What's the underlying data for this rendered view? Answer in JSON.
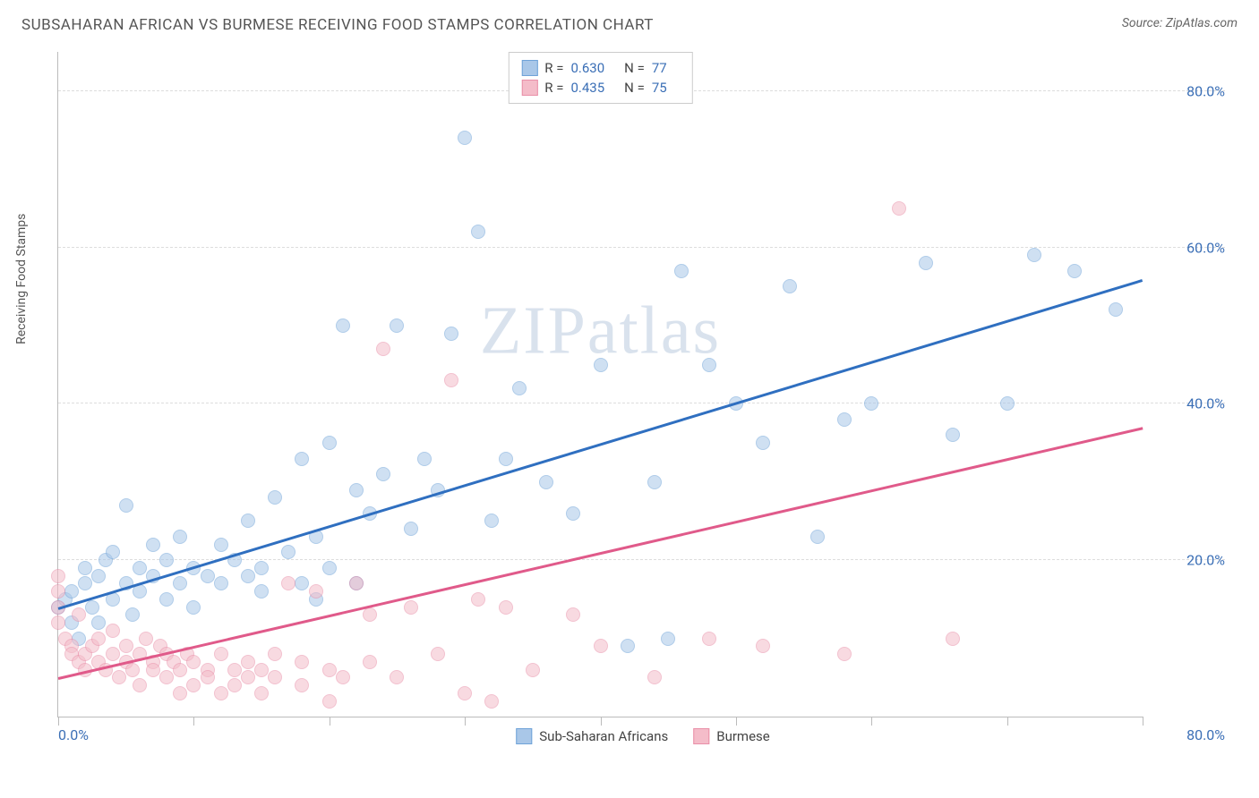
{
  "title": "SUBSAHARAN AFRICAN VS BURMESE RECEIVING FOOD STAMPS CORRELATION CHART",
  "source_label": "Source: ZipAtlas.com",
  "watermark": "ZIPatlas",
  "y_axis_label": "Receiving Food Stamps",
  "chart": {
    "type": "scatter",
    "xlim": [
      0,
      80
    ],
    "ylim": [
      0,
      85
    ],
    "x_tick_positions": [
      0,
      10,
      20,
      30,
      40,
      50,
      60,
      70,
      80
    ],
    "y_ticks": [
      20,
      40,
      60,
      80
    ],
    "y_tick_labels": [
      "20.0%",
      "40.0%",
      "60.0%",
      "80.0%"
    ],
    "x_min_label": "0.0%",
    "x_max_label": "80.0%",
    "background_color": "#ffffff",
    "grid_color": "#dddddd",
    "axis_color": "#bbbbbb",
    "tick_label_color": "#3b6fb6",
    "point_radius": 8,
    "point_opacity": 0.55,
    "series": [
      {
        "name": "Sub-Saharan Africans",
        "color_fill": "#a9c7e8",
        "color_stroke": "#6fa3d8",
        "r_value": "0.630",
        "n_value": "77",
        "trend": {
          "x1": 0,
          "y1": 14,
          "x2": 80,
          "y2": 56,
          "color": "#2f6fc0",
          "width": 2.5
        },
        "points": [
          [
            0,
            14
          ],
          [
            0.5,
            15
          ],
          [
            1,
            16
          ],
          [
            1,
            12
          ],
          [
            1.5,
            10
          ],
          [
            2,
            17
          ],
          [
            2,
            19
          ],
          [
            2.5,
            14
          ],
          [
            3,
            18
          ],
          [
            3,
            12
          ],
          [
            3.5,
            20
          ],
          [
            4,
            15
          ],
          [
            4,
            21
          ],
          [
            5,
            17
          ],
          [
            5,
            27
          ],
          [
            5.5,
            13
          ],
          [
            6,
            19
          ],
          [
            6,
            16
          ],
          [
            7,
            18
          ],
          [
            7,
            22
          ],
          [
            8,
            20
          ],
          [
            8,
            15
          ],
          [
            9,
            17
          ],
          [
            9,
            23
          ],
          [
            10,
            19
          ],
          [
            10,
            14
          ],
          [
            11,
            18
          ],
          [
            12,
            22
          ],
          [
            12,
            17
          ],
          [
            13,
            20
          ],
          [
            14,
            18
          ],
          [
            14,
            25
          ],
          [
            15,
            19
          ],
          [
            15,
            16
          ],
          [
            16,
            28
          ],
          [
            17,
            21
          ],
          [
            18,
            17
          ],
          [
            18,
            33
          ],
          [
            19,
            15
          ],
          [
            19,
            23
          ],
          [
            20,
            19
          ],
          [
            20,
            35
          ],
          [
            21,
            50
          ],
          [
            22,
            29
          ],
          [
            22,
            17
          ],
          [
            23,
            26
          ],
          [
            24,
            31
          ],
          [
            25,
            50
          ],
          [
            26,
            24
          ],
          [
            27,
            33
          ],
          [
            28,
            29
          ],
          [
            29,
            49
          ],
          [
            30,
            74
          ],
          [
            31,
            62
          ],
          [
            32,
            25
          ],
          [
            33,
            33
          ],
          [
            34,
            42
          ],
          [
            36,
            30
          ],
          [
            38,
            26
          ],
          [
            40,
            45
          ],
          [
            42,
            9
          ],
          [
            44,
            30
          ],
          [
            45,
            10
          ],
          [
            46,
            57
          ],
          [
            48,
            45
          ],
          [
            50,
            40
          ],
          [
            52,
            35
          ],
          [
            54,
            55
          ],
          [
            56,
            23
          ],
          [
            58,
            38
          ],
          [
            60,
            40
          ],
          [
            64,
            58
          ],
          [
            66,
            36
          ],
          [
            70,
            40
          ],
          [
            72,
            59
          ],
          [
            75,
            57
          ],
          [
            78,
            52
          ]
        ]
      },
      {
        "name": "Burmese",
        "color_fill": "#f4bcc9",
        "color_stroke": "#e98fa8",
        "r_value": "0.435",
        "n_value": "75",
        "trend": {
          "x1": 0,
          "y1": 5,
          "x2": 80,
          "y2": 37,
          "color": "#e05a8a",
          "width": 2.5
        },
        "points": [
          [
            0,
            18
          ],
          [
            0,
            16
          ],
          [
            0,
            14
          ],
          [
            0,
            12
          ],
          [
            0.5,
            10
          ],
          [
            1,
            9
          ],
          [
            1,
            8
          ],
          [
            1.5,
            7
          ],
          [
            1.5,
            13
          ],
          [
            2,
            8
          ],
          [
            2,
            6
          ],
          [
            2.5,
            9
          ],
          [
            3,
            7
          ],
          [
            3,
            10
          ],
          [
            3.5,
            6
          ],
          [
            4,
            8
          ],
          [
            4,
            11
          ],
          [
            4.5,
            5
          ],
          [
            5,
            7
          ],
          [
            5,
            9
          ],
          [
            5.5,
            6
          ],
          [
            6,
            8
          ],
          [
            6,
            4
          ],
          [
            6.5,
            10
          ],
          [
            7,
            7
          ],
          [
            7,
            6
          ],
          [
            7.5,
            9
          ],
          [
            8,
            5
          ],
          [
            8,
            8
          ],
          [
            8.5,
            7
          ],
          [
            9,
            6
          ],
          [
            9,
            3
          ],
          [
            9.5,
            8
          ],
          [
            10,
            7
          ],
          [
            10,
            4
          ],
          [
            11,
            6
          ],
          [
            11,
            5
          ],
          [
            12,
            3
          ],
          [
            12,
            8
          ],
          [
            13,
            6
          ],
          [
            13,
            4
          ],
          [
            14,
            5
          ],
          [
            14,
            7
          ],
          [
            15,
            6
          ],
          [
            15,
            3
          ],
          [
            16,
            8
          ],
          [
            16,
            5
          ],
          [
            17,
            17
          ],
          [
            18,
            4
          ],
          [
            18,
            7
          ],
          [
            19,
            16
          ],
          [
            20,
            6
          ],
          [
            20,
            2
          ],
          [
            21,
            5
          ],
          [
            22,
            17
          ],
          [
            23,
            7
          ],
          [
            23,
            13
          ],
          [
            24,
            47
          ],
          [
            25,
            5
          ],
          [
            26,
            14
          ],
          [
            28,
            8
          ],
          [
            29,
            43
          ],
          [
            30,
            3
          ],
          [
            31,
            15
          ],
          [
            32,
            2
          ],
          [
            33,
            14
          ],
          [
            35,
            6
          ],
          [
            38,
            13
          ],
          [
            40,
            9
          ],
          [
            44,
            5
          ],
          [
            48,
            10
          ],
          [
            52,
            9
          ],
          [
            58,
            8
          ],
          [
            62,
            65
          ],
          [
            66,
            10
          ]
        ]
      }
    ]
  },
  "legend_top": {
    "r_label": "R =",
    "n_label": "N ="
  },
  "legend_bottom": [
    {
      "label": "Sub-Saharan Africans",
      "fill": "#a9c7e8",
      "stroke": "#6fa3d8"
    },
    {
      "label": "Burmese",
      "fill": "#f4bcc9",
      "stroke": "#e98fa8"
    }
  ]
}
